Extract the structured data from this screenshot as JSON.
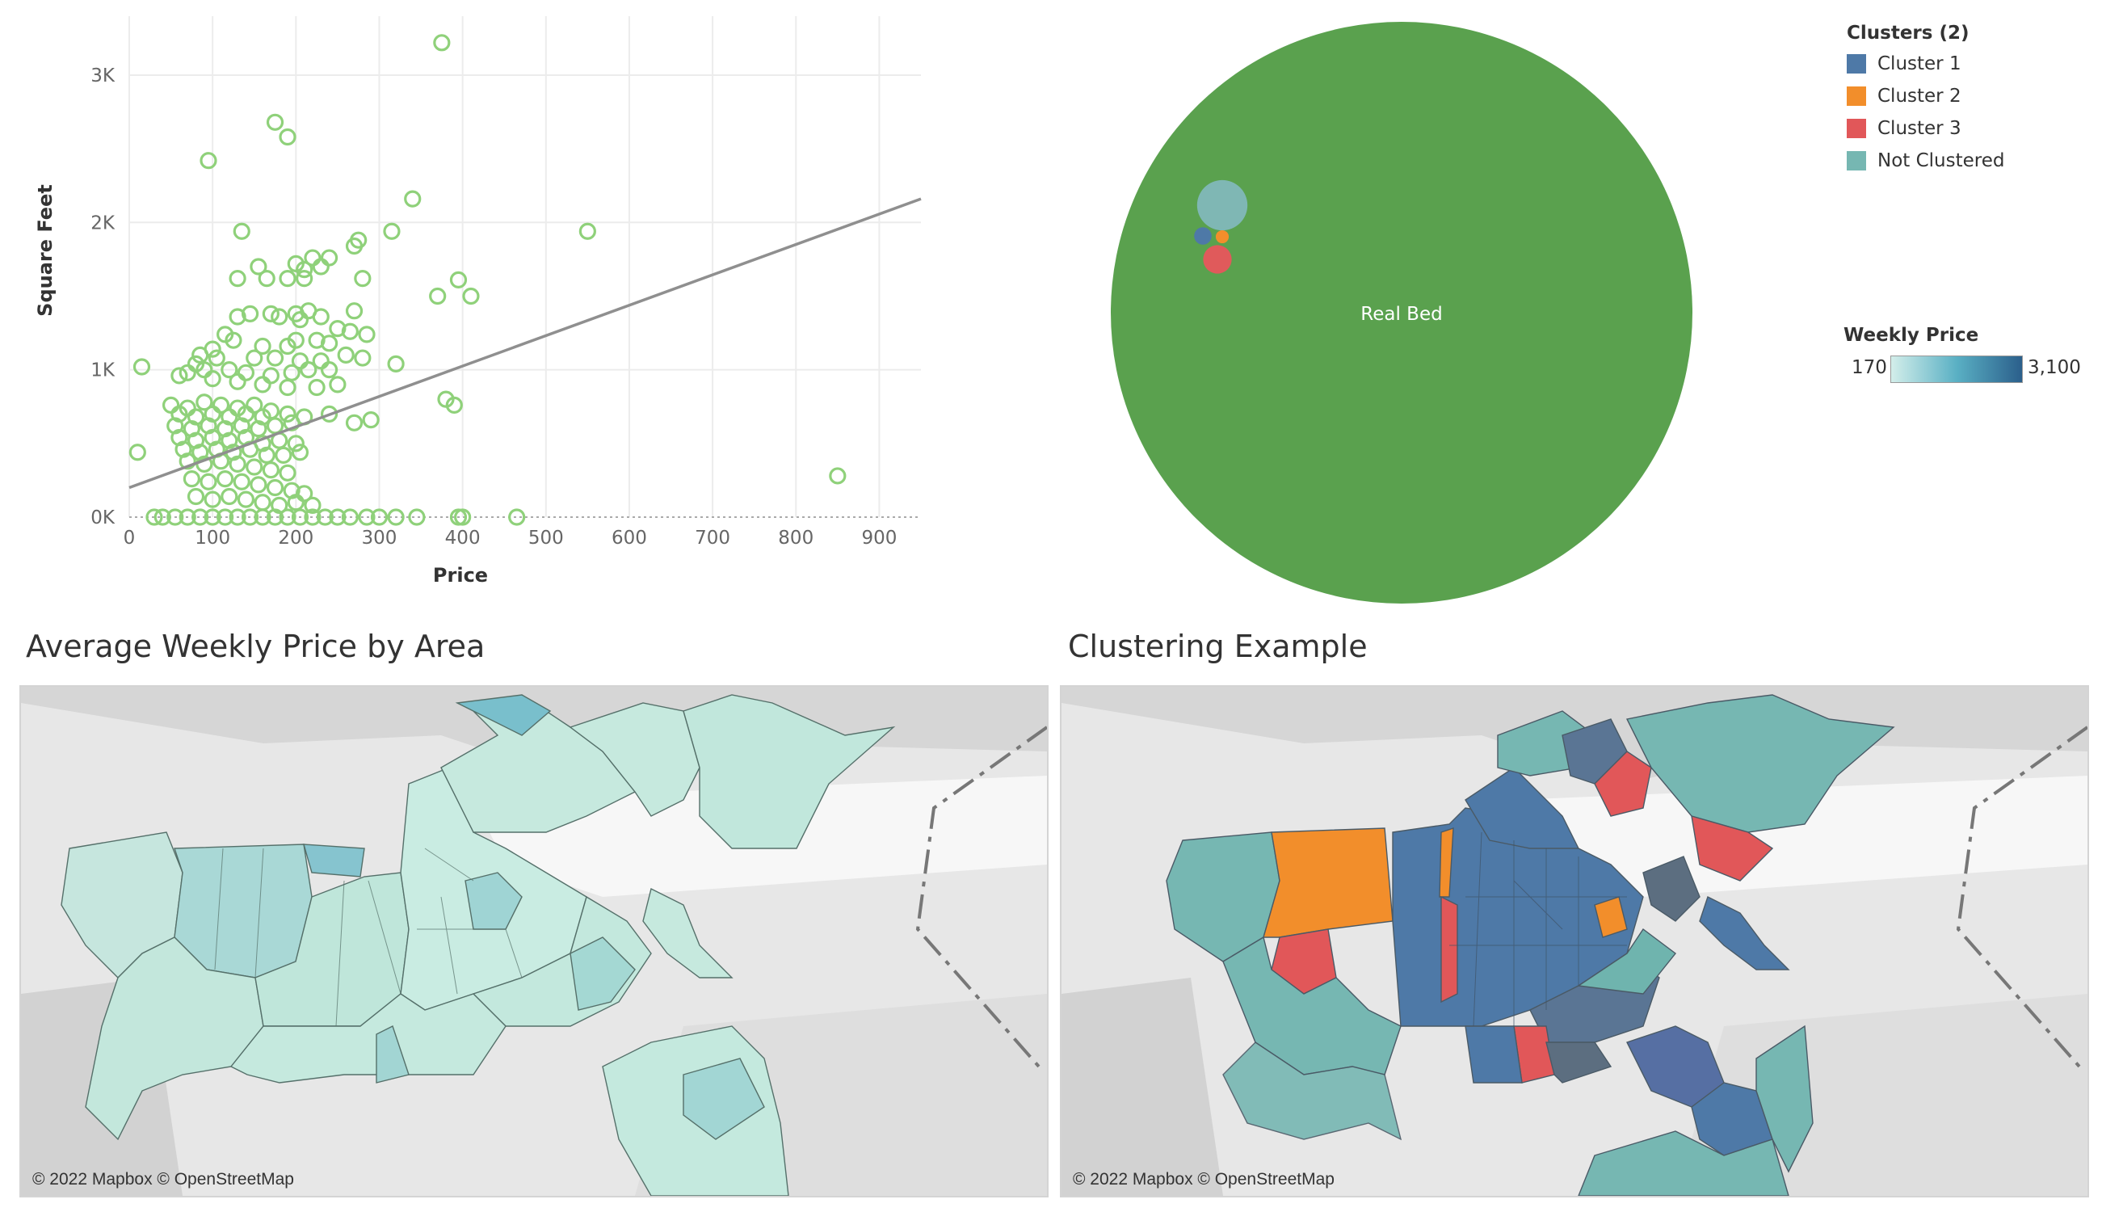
{
  "chart_data": [
    {
      "type": "scatter",
      "xlabel": "Price",
      "ylabel": "Square Feet",
      "xlim": [
        0,
        950
      ],
      "ylim": [
        0,
        3400
      ],
      "x_ticks": [
        "0",
        "100",
        "200",
        "300",
        "400",
        "500",
        "600",
        "700",
        "800",
        "900"
      ],
      "y_ticks": [
        "0K",
        "1K",
        "2K",
        "3K"
      ],
      "grid": true,
      "color": "#8fd17a",
      "trend_line": {
        "x": [
          0,
          950
        ],
        "y": [
          200,
          2160
        ],
        "color": "#8f8f8f"
      },
      "points": [
        [
          375,
          3220
        ],
        [
          175,
          2680
        ],
        [
          190,
          2580
        ],
        [
          95,
          2420
        ],
        [
          550,
          1940
        ],
        [
          340,
          2160
        ],
        [
          135,
          1940
        ],
        [
          315,
          1940
        ],
        [
          275,
          1880
        ],
        [
          270,
          1840
        ],
        [
          220,
          1760
        ],
        [
          200,
          1720
        ],
        [
          155,
          1700
        ],
        [
          210,
          1680
        ],
        [
          230,
          1700
        ],
        [
          240,
          1760
        ],
        [
          130,
          1620
        ],
        [
          165,
          1620
        ],
        [
          190,
          1620
        ],
        [
          210,
          1620
        ],
        [
          280,
          1620
        ],
        [
          370,
          1500
        ],
        [
          395,
          1610
        ],
        [
          410,
          1500
        ],
        [
          130,
          1360
        ],
        [
          145,
          1380
        ],
        [
          170,
          1380
        ],
        [
          180,
          1360
        ],
        [
          200,
          1380
        ],
        [
          205,
          1340
        ],
        [
          215,
          1400
        ],
        [
          230,
          1360
        ],
        [
          270,
          1400
        ],
        [
          250,
          1280
        ],
        [
          265,
          1260
        ],
        [
          285,
          1240
        ],
        [
          115,
          1240
        ],
        [
          125,
          1200
        ],
        [
          160,
          1160
        ],
        [
          190,
          1160
        ],
        [
          200,
          1200
        ],
        [
          225,
          1200
        ],
        [
          240,
          1180
        ],
        [
          100,
          1140
        ],
        [
          85,
          1100
        ],
        [
          105,
          1080
        ],
        [
          150,
          1080
        ],
        [
          175,
          1080
        ],
        [
          205,
          1060
        ],
        [
          230,
          1060
        ],
        [
          260,
          1100
        ],
        [
          280,
          1080
        ],
        [
          320,
          1040
        ],
        [
          80,
          1040
        ],
        [
          15,
          1020
        ],
        [
          70,
          980
        ],
        [
          90,
          1000
        ],
        [
          120,
          1000
        ],
        [
          140,
          980
        ],
        [
          170,
          960
        ],
        [
          195,
          980
        ],
        [
          215,
          1000
        ],
        [
          240,
          1000
        ],
        [
          60,
          960
        ],
        [
          100,
          940
        ],
        [
          130,
          920
        ],
        [
          160,
          900
        ],
        [
          190,
          880
        ],
        [
          225,
          880
        ],
        [
          250,
          900
        ],
        [
          50,
          760
        ],
        [
          70,
          740
        ],
        [
          90,
          780
        ],
        [
          110,
          760
        ],
        [
          130,
          740
        ],
        [
          150,
          760
        ],
        [
          170,
          720
        ],
        [
          60,
          700
        ],
        [
          80,
          680
        ],
        [
          100,
          700
        ],
        [
          120,
          680
        ],
        [
          140,
          700
        ],
        [
          160,
          680
        ],
        [
          190,
          700
        ],
        [
          210,
          680
        ],
        [
          240,
          700
        ],
        [
          270,
          640
        ],
        [
          290,
          660
        ],
        [
          380,
          800
        ],
        [
          390,
          760
        ],
        [
          55,
          620
        ],
        [
          75,
          600
        ],
        [
          95,
          620
        ],
        [
          115,
          600
        ],
        [
          135,
          620
        ],
        [
          155,
          600
        ],
        [
          175,
          620
        ],
        [
          195,
          640
        ],
        [
          60,
          540
        ],
        [
          80,
          520
        ],
        [
          100,
          540
        ],
        [
          120,
          520
        ],
        [
          140,
          540
        ],
        [
          160,
          500
        ],
        [
          180,
          520
        ],
        [
          200,
          500
        ],
        [
          65,
          460
        ],
        [
          85,
          440
        ],
        [
          105,
          460
        ],
        [
          125,
          440
        ],
        [
          145,
          460
        ],
        [
          165,
          420
        ],
        [
          185,
          420
        ],
        [
          205,
          440
        ],
        [
          10,
          440
        ],
        [
          70,
          380
        ],
        [
          90,
          360
        ],
        [
          110,
          380
        ],
        [
          130,
          360
        ],
        [
          150,
          340
        ],
        [
          170,
          320
        ],
        [
          190,
          300
        ],
        [
          75,
          260
        ],
        [
          95,
          240
        ],
        [
          115,
          260
        ],
        [
          135,
          240
        ],
        [
          155,
          220
        ],
        [
          175,
          200
        ],
        [
          195,
          180
        ],
        [
          210,
          160
        ],
        [
          80,
          140
        ],
        [
          100,
          120
        ],
        [
          120,
          140
        ],
        [
          140,
          120
        ],
        [
          160,
          100
        ],
        [
          180,
          80
        ],
        [
          200,
          100
        ],
        [
          220,
          80
        ],
        [
          30,
          0
        ],
        [
          40,
          0
        ],
        [
          55,
          0
        ],
        [
          70,
          0
        ],
        [
          85,
          0
        ],
        [
          100,
          0
        ],
        [
          115,
          0
        ],
        [
          130,
          0
        ],
        [
          145,
          0
        ],
        [
          160,
          0
        ],
        [
          175,
          0
        ],
        [
          190,
          0
        ],
        [
          205,
          0
        ],
        [
          220,
          0
        ],
        [
          235,
          0
        ],
        [
          250,
          0
        ],
        [
          265,
          0
        ],
        [
          285,
          0
        ],
        [
          300,
          0
        ],
        [
          320,
          0
        ],
        [
          345,
          0
        ],
        [
          395,
          0
        ],
        [
          400,
          0
        ],
        [
          465,
          0
        ],
        [
          850,
          280
        ]
      ]
    },
    {
      "type": "packed-bubble",
      "bubbles": [
        {
          "label": "Real Bed",
          "color": "#5aa14e",
          "value": 100
        },
        {
          "label": "",
          "color": "#7fb7b4",
          "value": 0.75
        },
        {
          "label": "",
          "color": "#e05a5b",
          "value": 0.24
        },
        {
          "label": "",
          "color": "#4e79a7",
          "value": 0.09
        },
        {
          "label": "",
          "color": "#f28e2b",
          "value": 0.05
        }
      ]
    }
  ],
  "legend": {
    "clusters_title": "Clusters (2)",
    "clusters": [
      {
        "label": "Cluster 1",
        "color": "#4e79a7"
      },
      {
        "label": "Cluster 2",
        "color": "#f28e2b"
      },
      {
        "label": "Cluster 3",
        "color": "#e15759"
      },
      {
        "label": "Not Clustered",
        "color": "#76b7b2"
      }
    ],
    "weekly_title": "Weekly Price",
    "weekly_min": "170",
    "weekly_max": "3,100",
    "gradient": [
      "#d3eeea",
      "#2b5f8b"
    ]
  },
  "maps": [
    {
      "title": "Average Weekly Price by Area",
      "attribution": "© 2022 Mapbox © OpenStreetMap"
    },
    {
      "title": "Clustering Example",
      "attribution": "© 2022 Mapbox © OpenStreetMap"
    }
  ]
}
